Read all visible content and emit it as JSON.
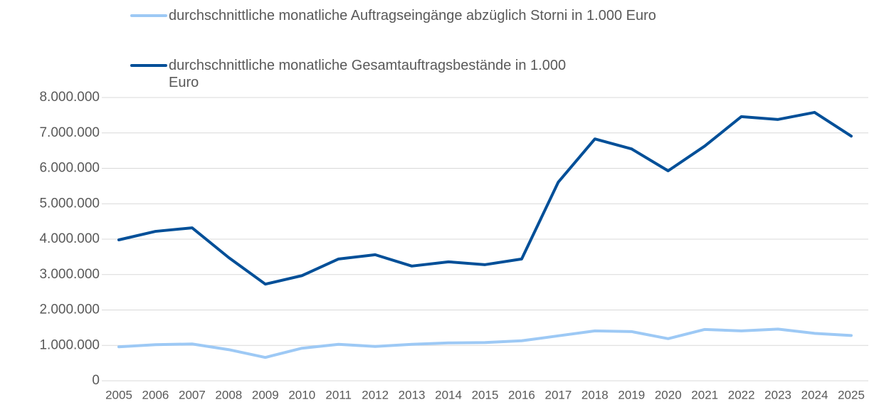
{
  "chart_data": {
    "type": "line",
    "x": [
      "2005",
      "2006",
      "2007",
      "2008",
      "2009",
      "2010",
      "2011",
      "2012",
      "2013",
      "2014",
      "2015",
      "2016",
      "2017",
      "2018",
      "2019",
      "2020",
      "2021",
      "2022",
      "2023",
      "2024",
      "2025"
    ],
    "series": [
      {
        "name": "durchschnittliche monatliche Auftragseingänge abzüglich Storni in 1.000 Euro",
        "color": "#9dc9f5",
        "values": [
          960000,
          1020000,
          1040000,
          880000,
          660000,
          920000,
          1030000,
          970000,
          1030000,
          1070000,
          1080000,
          1130000,
          1270000,
          1410000,
          1390000,
          1190000,
          1450000,
          1410000,
          1460000,
          1340000,
          1280000
        ]
      },
      {
        "name": "durchschnittliche monatliche Gesamtauftragsbestände in 1.000 Euro",
        "color": "#004f98",
        "values": [
          3980000,
          4220000,
          4320000,
          3480000,
          2730000,
          2970000,
          3440000,
          3560000,
          3240000,
          3360000,
          3280000,
          3440000,
          5610000,
          6830000,
          6550000,
          5930000,
          6630000,
          7460000,
          7380000,
          7580000,
          6910000
        ]
      }
    ],
    "ylim": [
      0,
      8000000
    ],
    "yticks": [
      0,
      {
        "value": 1000000,
        "label": "1.000.000"
      },
      {
        "value": 2000000,
        "label": "2.000.000"
      },
      {
        "value": 3000000,
        "label": "3.000.000"
      },
      {
        "value": 4000000,
        "label": "4.000.000"
      },
      {
        "value": 5000000,
        "label": "5.000.000"
      },
      {
        "value": 6000000,
        "label": "6.000.000"
      },
      {
        "value": 7000000,
        "label": "7.000.000"
      },
      {
        "value": 8000000,
        "label": "8.000.000"
      }
    ],
    "grid": true
  }
}
